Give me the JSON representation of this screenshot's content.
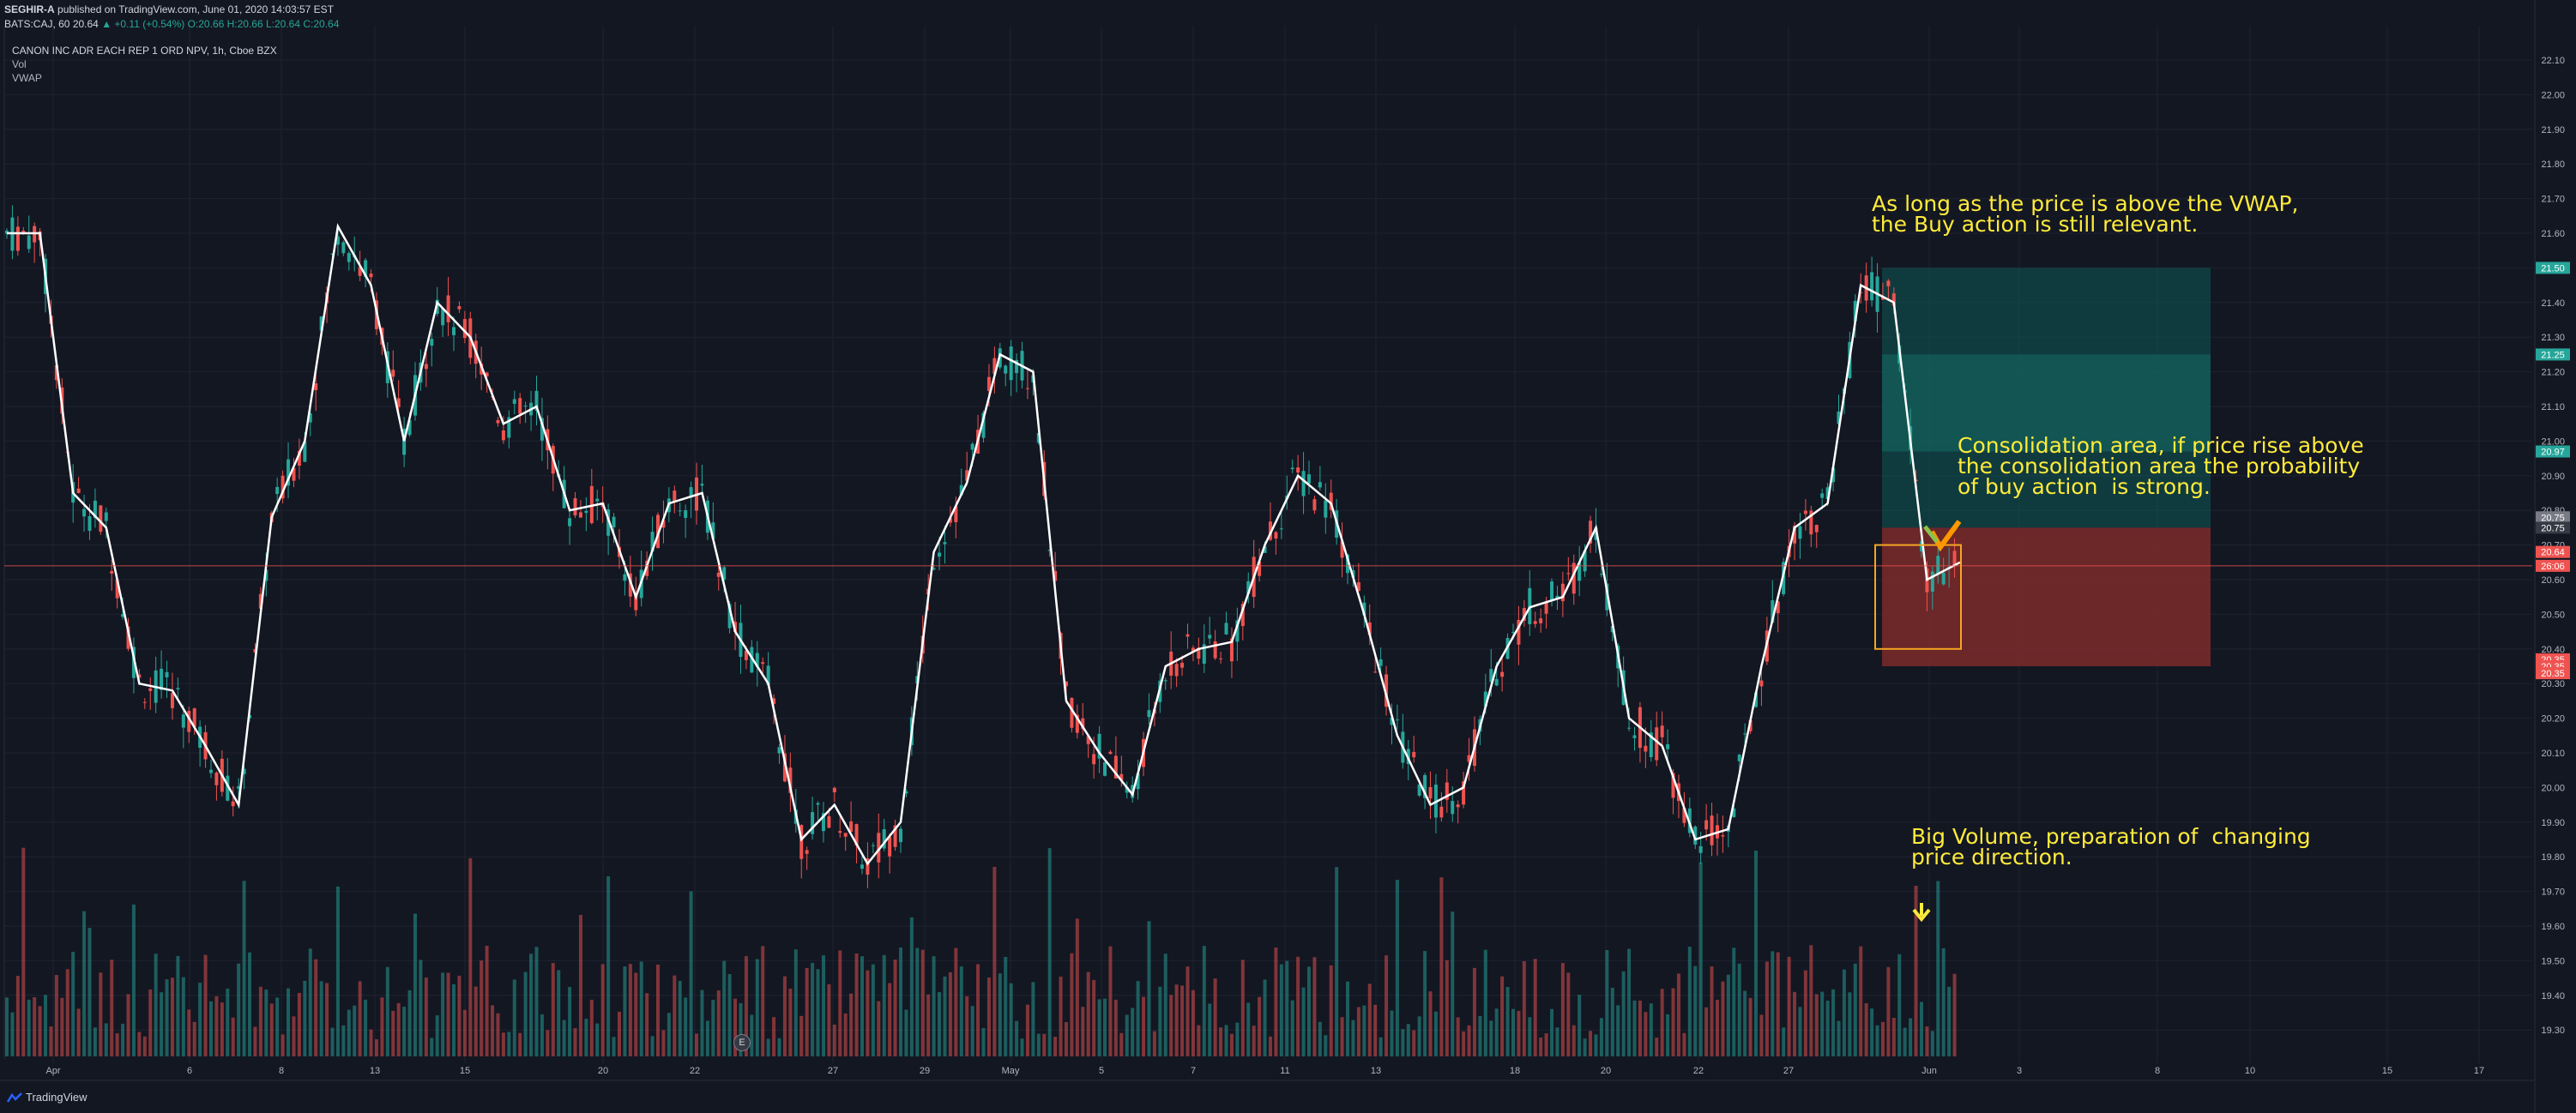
{
  "header": {
    "publisher": "SEGHIR-A",
    "published_text": "published on TradingView.com, June 01, 2020 14:03:57 EST",
    "symbol": "BATS:CAJ, 60",
    "last": "20.64",
    "change": "▲ +0.11 (+0.54%)",
    "ohlc": "O:20.66 H:20.66 L:20.64 C:20.64"
  },
  "legend": {
    "title": "CANON INC ADR EACH REP 1 ORD NPV, 1h, Cboe BZX",
    "vol": "Vol",
    "vwap": "VWAP"
  },
  "annotations": {
    "vwap_note": "As long as the price is above the VWAP,\nthe Buy action is still relevant.",
    "consolidation_note": "Consolidation area, if price rise above\nthe consolidation area the probability\nof buy action  is strong.",
    "volume_note": "Big Volume, preparation of  changing\nprice direction."
  },
  "footer": {
    "brand": "TradingView",
    "earnings_marker": "E"
  },
  "colors": {
    "background": "#131722",
    "up": "#26a69a",
    "down": "#ef5350",
    "vwap_line": "#ffffff",
    "annotation": "#ffeb3b",
    "target_zone": "#0f5a55",
    "stop_zone": "#7d2a2a"
  },
  "chart_data": {
    "type": "line",
    "title": "CANON INC ADR EACH REP 1 ORD NPV, 1h, Cboe BZX",
    "ylim": [
      19.25,
      22.15
    ],
    "y_ticks": [
      "22.10",
      "22.00",
      "21.90",
      "21.80",
      "21.70",
      "21.60",
      "21.50",
      "21.40",
      "21.30",
      "21.20",
      "21.10",
      "21.00",
      "20.90",
      "20.80",
      "20.70",
      "20.60",
      "20.50",
      "20.40",
      "20.30",
      "20.20",
      "20.10",
      "20.00",
      "19.90",
      "19.80",
      "19.70",
      "19.60",
      "19.50",
      "19.40",
      "19.30"
    ],
    "x_ticks": [
      "Apr",
      "6",
      "8",
      "13",
      "15",
      "20",
      "22",
      "27",
      "29",
      "May",
      "5",
      "7",
      "11",
      "13",
      "18",
      "20",
      "22",
      "27",
      "Jun",
      "3",
      "8",
      "10",
      "15",
      "17"
    ],
    "grid": true,
    "series": [
      {
        "name": "VWAP",
        "values": [
          21.6,
          21.6,
          20.85,
          20.75,
          20.3,
          20.28,
          20.12,
          19.95,
          20.78,
          21.0,
          21.62,
          21.45,
          21.0,
          21.4,
          21.3,
          21.05,
          21.1,
          20.8,
          20.82,
          20.55,
          20.82,
          20.85,
          20.45,
          20.3,
          19.85,
          19.95,
          19.78,
          19.9,
          20.68,
          20.88,
          21.25,
          21.2,
          20.25,
          20.1,
          19.98,
          20.35,
          20.4,
          20.42,
          20.7,
          20.9,
          20.82,
          20.5,
          20.15,
          19.95,
          20.0,
          20.35,
          20.52,
          20.55,
          20.75,
          20.2,
          20.12,
          19.85,
          19.88,
          20.35,
          20.75,
          20.82,
          21.45,
          21.4,
          20.6,
          20.65
        ]
      }
    ],
    "price_labels": [
      "21.50",
      "21.25",
      "20.97",
      "20.75",
      "20.75",
      "20.64",
      "26:06",
      "20.35",
      "20.35",
      "20.35"
    ],
    "zones": {
      "target_top": 21.5,
      "entry": 20.75,
      "stop_bottom": 20.35,
      "consolidation_top": 20.7,
      "consolidation_bottom": 20.4
    },
    "current_price": 20.64
  }
}
